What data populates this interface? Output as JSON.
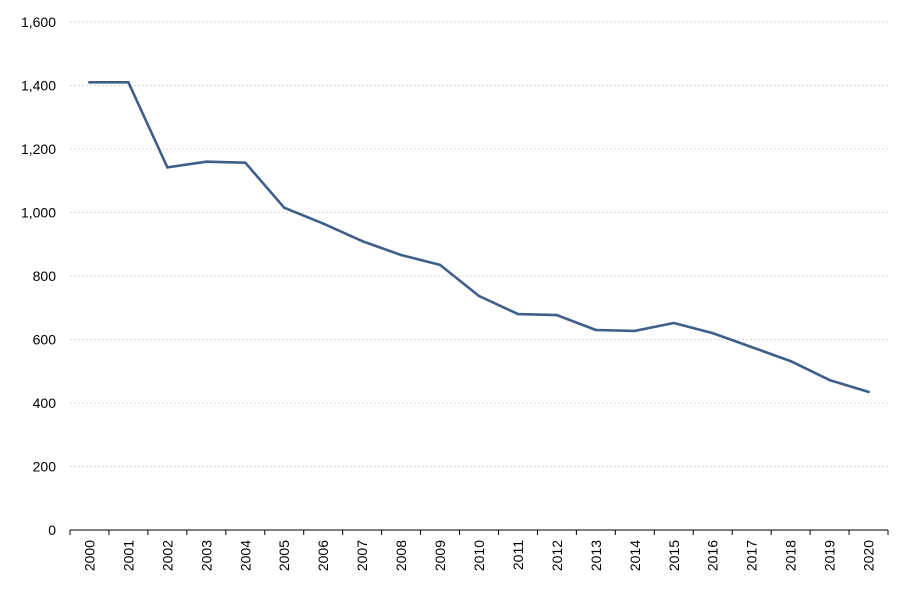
{
  "chart_data": {
    "type": "line",
    "title": "",
    "xlabel": "",
    "ylabel": "",
    "ylim": [
      0,
      1600
    ],
    "y_ticks": [
      0,
      200,
      400,
      600,
      800,
      1000,
      1200,
      1400,
      1600
    ],
    "y_tick_labels": [
      "0",
      "200",
      "400",
      "600",
      "800",
      "1,000",
      "1,200",
      "1,400",
      "1,600"
    ],
    "categories": [
      "2000",
      "2001",
      "2002",
      "2003",
      "2004",
      "2005",
      "2006",
      "2007",
      "2008",
      "2009",
      "2010",
      "2011",
      "2012",
      "2013",
      "2014",
      "2015",
      "2016",
      "2017",
      "2018",
      "2019",
      "2020"
    ],
    "series": [
      {
        "values": [
          1410,
          1410,
          1142,
          1160,
          1157,
          1015,
          965,
          910,
          866,
          835,
          737,
          680,
          677,
          630,
          627,
          652,
          620,
          576,
          532,
          472,
          435
        ],
        "color": "#3f5f8a"
      }
    ],
    "grid": true,
    "legend": "none"
  }
}
